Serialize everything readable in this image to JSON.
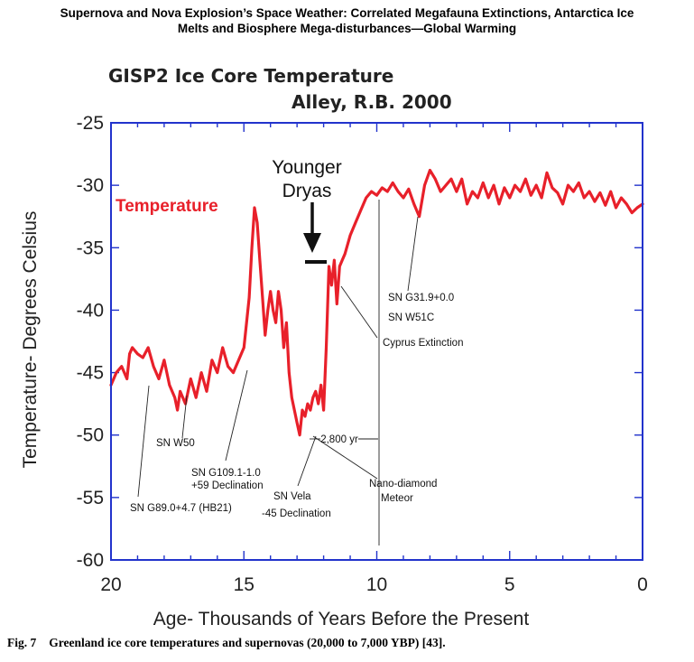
{
  "header": {
    "line1": "Supernova and Nova Explosion’s Space Weather: Correlated Megafauna Extinctions, Antarctica Ice",
    "line2": "Melts and Biosphere Mega-disturbances—Global Warming"
  },
  "caption": {
    "number": "Fig. 7",
    "text": "Greenland ice core temperatures and supernovas (20,000 to 7,000 YBP) [43]."
  },
  "colors": {
    "series": "#e8202a",
    "frame": "#2233cc",
    "text": "#222222"
  },
  "chart_data": {
    "type": "line",
    "title": "GISP2 Ice Core Temperature",
    "subtitle": "Alley, R.B. 2000",
    "xlabel": "Age- Thousands of Years Before the Present",
    "ylabel": "Temperature- Degrees Celsius",
    "xlim": [
      20,
      0
    ],
    "ylim": [
      -60,
      -25
    ],
    "xticks": [
      20,
      15,
      10,
      5,
      0
    ],
    "yticks": [
      -25,
      -30,
      -35,
      -40,
      -45,
      -50,
      -55,
      -60
    ],
    "legend": "top-left",
    "series": [
      {
        "name": "Temperature",
        "x": [
          20.0,
          19.8,
          19.6,
          19.4,
          19.3,
          19.2,
          19.0,
          18.8,
          18.6,
          18.4,
          18.2,
          18.0,
          17.8,
          17.6,
          17.5,
          17.4,
          17.2,
          17.0,
          16.8,
          16.6,
          16.4,
          16.2,
          16.0,
          15.8,
          15.6,
          15.4,
          15.2,
          15.0,
          14.9,
          14.8,
          14.7,
          14.6,
          14.5,
          14.4,
          14.3,
          14.2,
          14.1,
          14.0,
          13.9,
          13.8,
          13.7,
          13.6,
          13.5,
          13.4,
          13.3,
          13.2,
          13.1,
          13.0,
          12.9,
          12.8,
          12.7,
          12.6,
          12.5,
          12.4,
          12.3,
          12.2,
          12.1,
          12.0,
          11.9,
          11.8,
          11.7,
          11.6,
          11.5,
          11.4,
          11.3,
          11.2,
          11.0,
          10.8,
          10.6,
          10.4,
          10.2,
          10.0,
          9.8,
          9.6,
          9.4,
          9.2,
          9.0,
          8.8,
          8.6,
          8.4,
          8.2,
          8.0,
          7.8,
          7.6,
          7.4,
          7.2,
          7.0,
          6.8,
          6.6,
          6.4,
          6.2,
          6.0,
          5.8,
          5.6,
          5.4,
          5.2,
          5.0,
          4.8,
          4.6,
          4.4,
          4.2,
          4.0,
          3.8,
          3.6,
          3.4,
          3.2,
          3.0,
          2.8,
          2.6,
          2.4,
          2.2,
          2.0,
          1.8,
          1.6,
          1.4,
          1.2,
          1.0,
          0.8,
          0.6,
          0.4,
          0.2,
          0.0
        ],
        "y": [
          -46.0,
          -45.0,
          -44.5,
          -45.5,
          -43.5,
          -43.0,
          -43.5,
          -43.8,
          -43.0,
          -44.5,
          -45.5,
          -44.0,
          -46.0,
          -47.0,
          -48.0,
          -46.5,
          -47.5,
          -45.5,
          -47.0,
          -45.0,
          -46.5,
          -44.0,
          -45.0,
          -43.0,
          -44.5,
          -45.0,
          -44.0,
          -43.0,
          -41.0,
          -39.0,
          -35.0,
          -31.8,
          -33.0,
          -36.0,
          -39.0,
          -42.0,
          -40.0,
          -38.5,
          -40.0,
          -41.0,
          -38.5,
          -40.0,
          -43.0,
          -41.0,
          -45.0,
          -47.0,
          -48.0,
          -49.0,
          -50.0,
          -48.0,
          -48.5,
          -47.5,
          -48.0,
          -47.0,
          -46.5,
          -47.5,
          -46.0,
          -48.0,
          -43.0,
          -36.5,
          -38.0,
          -36.0,
          -39.5,
          -36.5,
          -36.0,
          -35.5,
          -34.0,
          -33.0,
          -32.0,
          -31.0,
          -30.5,
          -30.8,
          -30.2,
          -30.5,
          -29.8,
          -30.5,
          -31.0,
          -30.3,
          -31.5,
          -32.5,
          -30.0,
          -28.8,
          -29.5,
          -30.5,
          -30.0,
          -29.5,
          -30.5,
          -29.5,
          -31.5,
          -30.5,
          -31.0,
          -29.8,
          -31.0,
          -30.0,
          -31.5,
          -30.2,
          -31.0,
          -30.0,
          -30.5,
          -29.5,
          -30.8,
          -30.0,
          -31.0,
          -29.0,
          -30.2,
          -30.6,
          -31.5,
          -30.0,
          -30.5,
          -29.8,
          -31.0,
          -30.5,
          -31.3,
          -30.6,
          -31.6,
          -30.5,
          -31.8,
          -31.0,
          -31.5,
          -32.2,
          -31.8,
          -31.5
        ]
      }
    ],
    "annotations": {
      "younger_dryas_line1": "Younger",
      "younger_dryas_line2": "Dryas",
      "interval": "2,800 yr",
      "sn_w50": "SN W50",
      "sn_g89": "SN G89.0+4.7 (HB21)",
      "sn_g109_line1": "SN G109.1-1.0",
      "sn_g109_line2": "+59 Declination",
      "sn_vela_line1": "SN Vela",
      "sn_vela_line2": "-45 Declination",
      "nano_line1": "Nano-diamond",
      "nano_line2": "Meteor",
      "sn_g31": "SN G31.9+0.0",
      "sn_w51c": "SN W51C",
      "cyprus": "Cyprus Extinction"
    }
  }
}
